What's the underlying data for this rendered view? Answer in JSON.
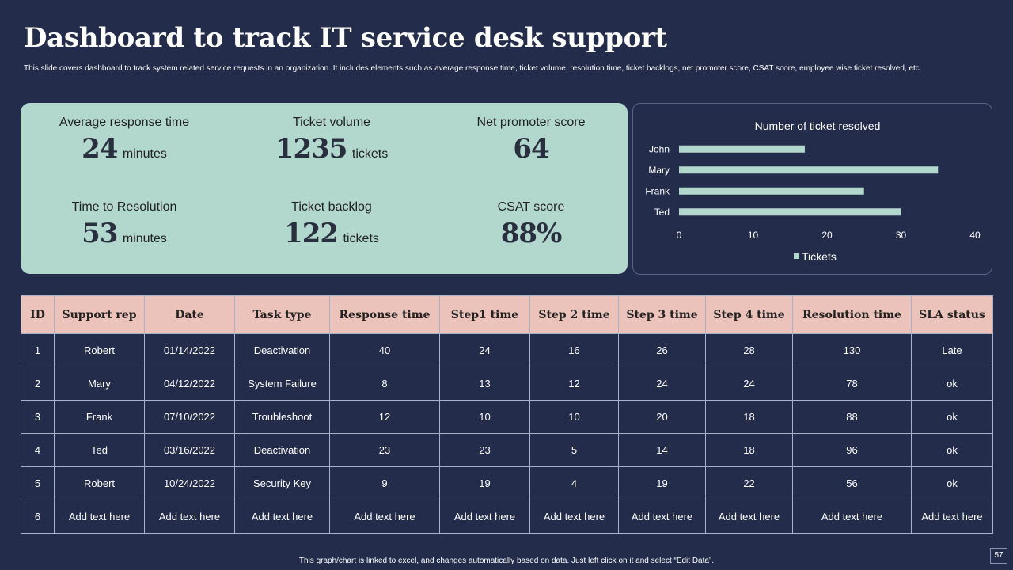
{
  "slide": {
    "title": "Dashboard to track IT service desk support",
    "subtitle": "This slide covers dashboard to track system related service requests in an organization. It includes elements  such as average response time, ticket volume,  resolution time,  ticket backlogs, net promoter score, CSAT score, employee wise ticket resolved, etc.",
    "footer": "This graph/chart is linked to excel, and changes automatically based on data. Just left click on it and select “Edit Data”.",
    "page_number": "57"
  },
  "kpis": [
    {
      "label": "Average response time",
      "value": "24",
      "unit": "minutes"
    },
    {
      "label": "Ticket volume",
      "value": "1235",
      "unit": "tickets"
    },
    {
      "label": "Net promoter score",
      "value": "64",
      "unit": ""
    },
    {
      "label": "Time to Resolution",
      "value": "53",
      "unit": "minutes"
    },
    {
      "label": "Ticket backlog",
      "value": "122",
      "unit": "tickets"
    },
    {
      "label": "CSAT score",
      "value": "88%",
      "unit": ""
    }
  ],
  "chart_data": {
    "type": "bar",
    "orientation": "horizontal",
    "title": "Number of ticket resolved",
    "categories": [
      "John",
      "Mary",
      "Frank",
      "Ted"
    ],
    "series": [
      {
        "name": "Tickets",
        "values": [
          17,
          35,
          25,
          30
        ]
      }
    ],
    "xlim": [
      0,
      40
    ],
    "xticks": [
      "0",
      "10",
      "20",
      "30",
      "40"
    ],
    "legend": "bottom",
    "bar_color": "#b2d8ce"
  },
  "table": {
    "headers": [
      "ID",
      "Support rep",
      "Date",
      "Task type",
      "Response time",
      "Step1 time",
      "Step 2 time",
      "Step 3 time",
      "Step 4 time",
      "Resolution time",
      "SLA status"
    ],
    "rows": [
      [
        "1",
        "Robert",
        "01/14/2022",
        "Deactivation",
        "40",
        "24",
        "16",
        "26",
        "28",
        "130",
        "Late"
      ],
      [
        "2",
        "Mary",
        "04/12/2022",
        "System Failure",
        "8",
        "13",
        "12",
        "24",
        "24",
        "78",
        "ok"
      ],
      [
        "3",
        "Frank",
        "07/10/2022",
        "Troubleshoot",
        "12",
        "10",
        "10",
        "20",
        "18",
        "88",
        "ok"
      ],
      [
        "4",
        "Ted",
        "03/16/2022",
        "Deactivation",
        "23",
        "23",
        "5",
        "14",
        "18",
        "96",
        "ok"
      ],
      [
        "5",
        "Robert",
        "10/24/2022",
        "Security Key",
        "9",
        "19",
        "4",
        "19",
        "22",
        "56",
        "ok"
      ],
      [
        "6",
        "Add text here",
        "Add text here",
        "Add text here",
        "Add text here",
        "Add text here",
        "Add text here",
        "Add text here",
        "Add text here",
        "Add text here",
        "Add text here"
      ]
    ]
  },
  "colors": {
    "background": "#232c4b",
    "kpi_panel": "#b2d8ce",
    "table_header": "#ebc3ba"
  }
}
